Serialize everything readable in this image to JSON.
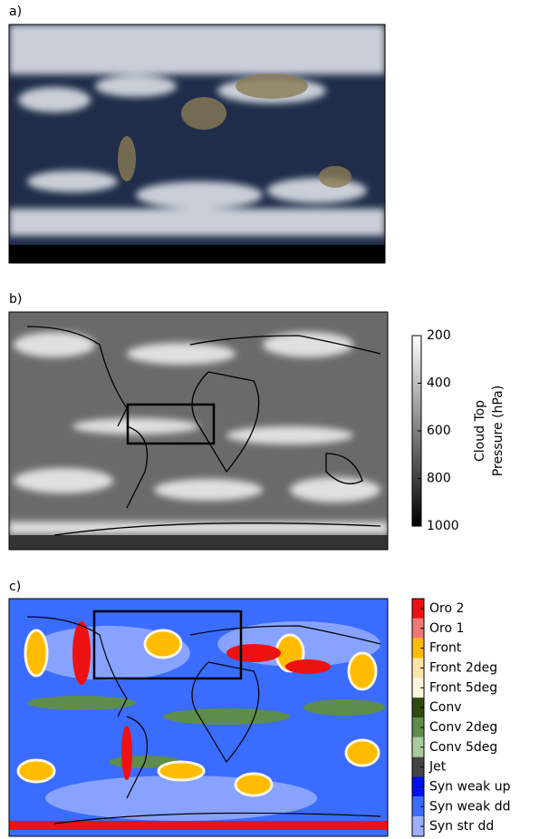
{
  "panels": [
    {
      "label": "a)"
    },
    {
      "label": "b)",
      "colorbar": {
        "label_lines": [
          "Cloud Top",
          "Pressure (hPa)"
        ],
        "lim": [
          1000,
          200
        ],
        "ticks": [
          200,
          400,
          600,
          800,
          1000
        ]
      }
    },
    {
      "label": "c)",
      "legend": [
        {
          "name": "Oro 2",
          "color": "#ee1111"
        },
        {
          "name": "Oro 1",
          "color": "#f27878"
        },
        {
          "name": "Front",
          "color": "#ffbb00"
        },
        {
          "name": "Front 2deg",
          "color": "#ffe3a6"
        },
        {
          "name": "Front 5deg",
          "color": "#fff6dc"
        },
        {
          "name": "Conv",
          "color": "#2e4a10"
        },
        {
          "name": "Conv 2deg",
          "color": "#5e8c4c"
        },
        {
          "name": "Conv 5deg",
          "color": "#aacb9c"
        },
        {
          "name": "Jet",
          "color": "#444444"
        },
        {
          "name": "Syn weak up",
          "color": "#0011ee"
        },
        {
          "name": "Syn weak dd",
          "color": "#3a6cff"
        },
        {
          "name": "Syn str dd",
          "color": "#9cb0ff"
        }
      ]
    }
  ]
}
